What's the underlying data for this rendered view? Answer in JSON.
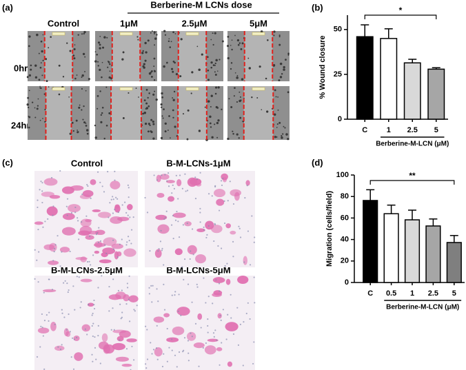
{
  "panel_a": {
    "label": "(a)",
    "dose_title": "Berberine-M LCNs dose",
    "columns": [
      "Control",
      "1μM",
      "2.5μM",
      "5μM"
    ],
    "rows": [
      "0hr",
      "24hr"
    ]
  },
  "panel_c": {
    "label": "(c)",
    "images": [
      "Control",
      "B-M-LCNs-1μM",
      "B-M-LCNs-2.5μM",
      "B-M-LCNs-5μM"
    ]
  },
  "chart_data": [
    {
      "type": "bar",
      "panel": "(b)",
      "ylabel": "% Wound closure",
      "xlabel": "Berberine-M-LCN (μM)",
      "categories": [
        "C",
        "1",
        "2.5",
        "5"
      ],
      "values": [
        46,
        45,
        31.4,
        27.9
      ],
      "errors": [
        6.6,
        5.4,
        2,
        0.8
      ],
      "colors": [
        "#000000",
        "#ffffff",
        "#d9d9d9",
        "#a6a6a6"
      ],
      "ylim": [
        0,
        58
      ],
      "yticks": [
        0,
        25,
        50
      ],
      "annotation": "*"
    },
    {
      "type": "bar",
      "panel": "(d)",
      "ylabel": "Migration (cells/field)",
      "xlabel": "Berberine-M-LCN (μM)",
      "categories": [
        "C",
        "0.5",
        "1",
        "2.5",
        "5"
      ],
      "values": [
        76.3,
        64,
        58.3,
        52.6,
        37.2
      ],
      "errors": [
        10,
        8,
        9,
        6.5,
        6.5
      ],
      "colors": [
        "#000000",
        "#ffffff",
        "#d9d9d9",
        "#a6a6a6",
        "#7f7f7f"
      ],
      "ylim": [
        0,
        100
      ],
      "yticks": [
        0,
        20,
        40,
        60,
        80,
        100
      ],
      "annotation": "**"
    }
  ]
}
